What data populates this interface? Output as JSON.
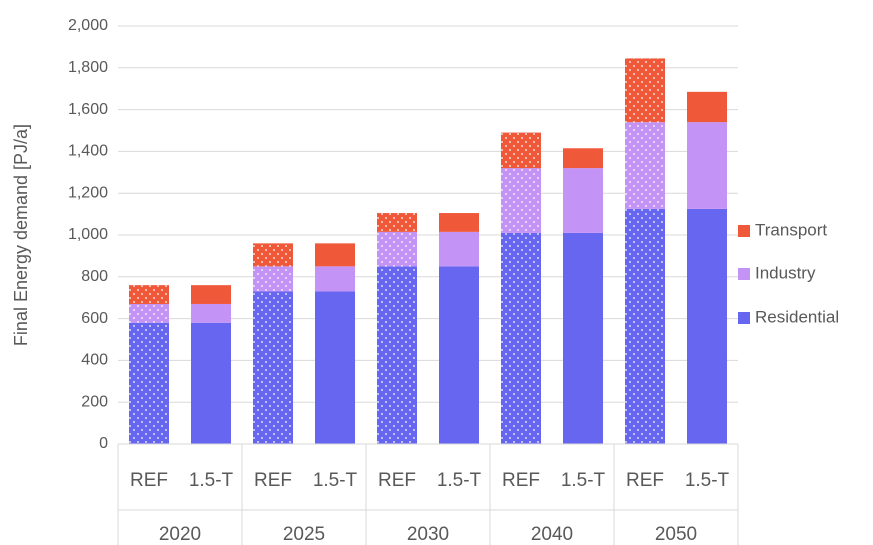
{
  "chart_data": {
    "type": "stacked_bar",
    "y_label": "Final Energy demand [PJ/a]",
    "groups": [
      "2020",
      "2025",
      "2030",
      "2040",
      "2050"
    ],
    "categories": [
      "REF",
      "1.5-T",
      "REF",
      "1.5-T",
      "REF",
      "1.5-T",
      "REF",
      "1.5-T",
      "REF",
      "1.5-T"
    ],
    "series": [
      {
        "name": "Residential",
        "color": "#6666f0",
        "values": [
          580,
          580,
          730,
          730,
          850,
          850,
          1010,
          1010,
          1125,
          1125
        ]
      },
      {
        "name": "Industry",
        "color": "#c393f5",
        "values": [
          90,
          90,
          120,
          120,
          165,
          165,
          310,
          310,
          415,
          415
        ]
      },
      {
        "name": "Transport",
        "color": "#f0583a",
        "values": [
          90,
          90,
          110,
          110,
          90,
          90,
          170,
          95,
          305,
          145
        ]
      }
    ],
    "ylim": [
      0,
      2000
    ],
    "yticks": [
      0,
      200,
      400,
      600,
      800,
      {
        "value": 1000,
        "label": "1,000"
      },
      {
        "value": 1200,
        "label": "1,200"
      },
      {
        "value": 1400,
        "label": "1,400"
      },
      {
        "value": 1600,
        "label": "1,600"
      },
      {
        "value": 1800,
        "label": "1,800"
      },
      {
        "value": 2000,
        "label": "2,000"
      }
    ],
    "grid": true,
    "legend": "right"
  }
}
